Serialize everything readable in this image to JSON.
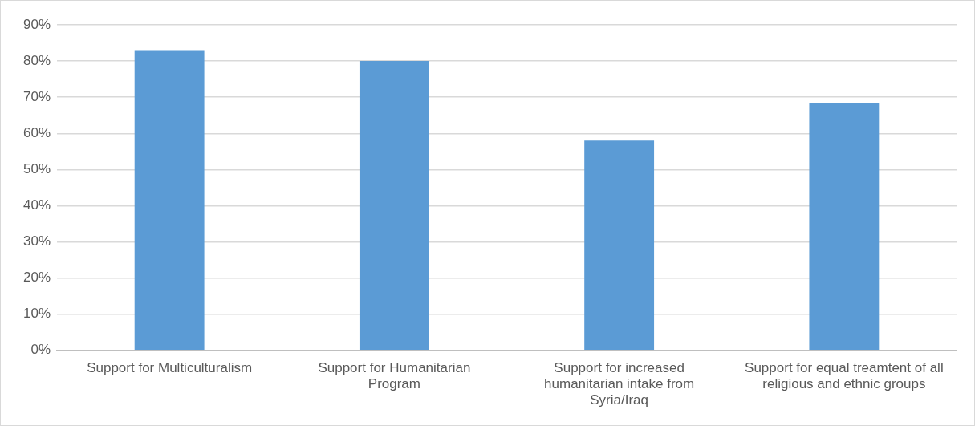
{
  "chart_data": {
    "type": "bar",
    "categories": [
      "Support for Multiculturalism",
      "Support for Humanitarian Program",
      "Support for increased humanitarian intake from Syria/Iraq",
      "Support for equal treamtent of all religious and ethnic groups"
    ],
    "values": [
      83,
      80,
      58,
      68.5
    ],
    "color": "#5b9bd5",
    "ylim": [
      0,
      90
    ],
    "yticks": [
      {
        "value": 0,
        "label": "0%"
      },
      {
        "value": 10,
        "label": "10%"
      },
      {
        "value": 20,
        "label": "20%"
      },
      {
        "value": 30,
        "label": "30%"
      },
      {
        "value": 40,
        "label": "40%"
      },
      {
        "value": 50,
        "label": "50%"
      },
      {
        "value": 60,
        "label": "60%"
      },
      {
        "value": 70,
        "label": "70%"
      },
      {
        "value": 80,
        "label": "80%"
      },
      {
        "value": 90,
        "label": "90%"
      }
    ],
    "grid": "y"
  }
}
